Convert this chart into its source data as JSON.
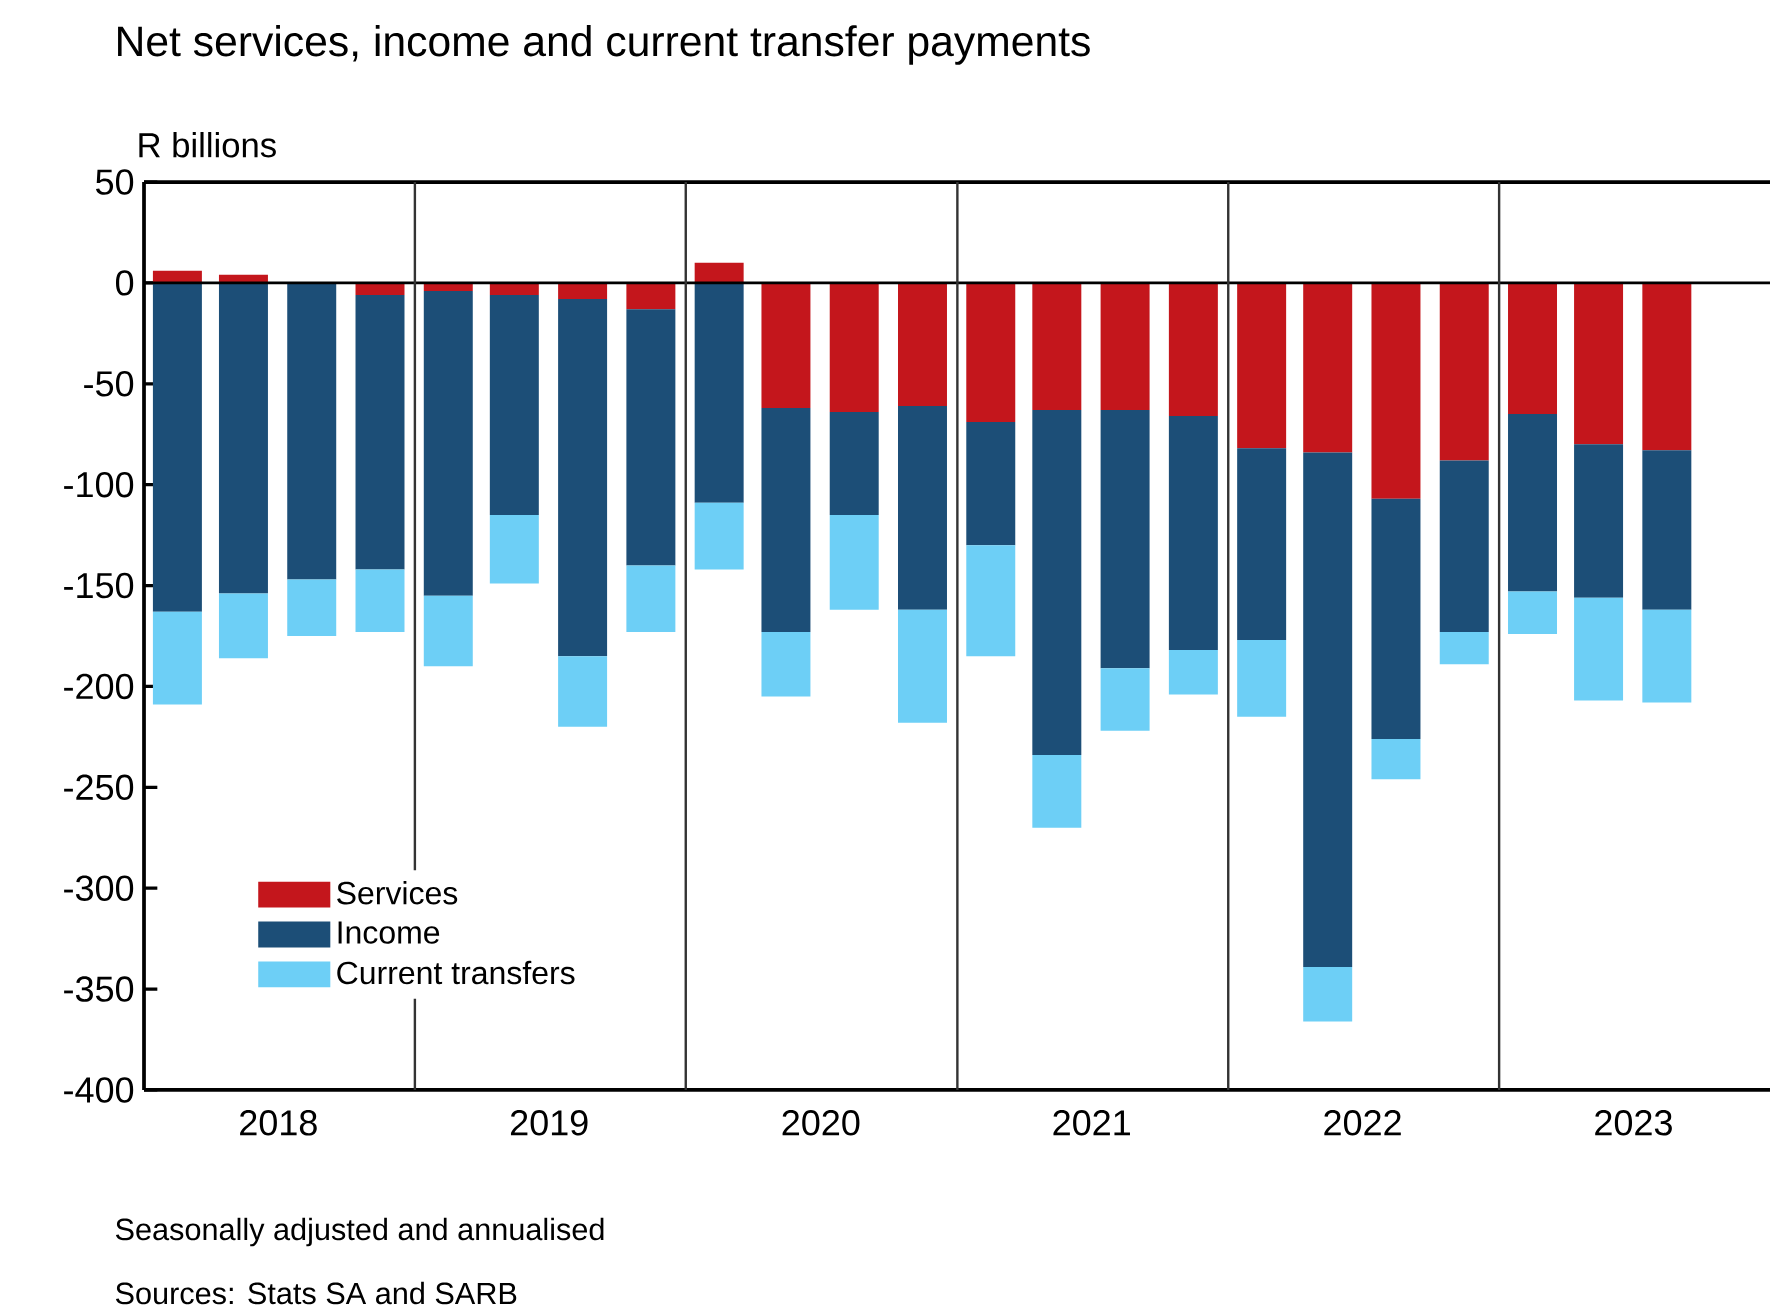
{
  "chart_data": {
    "type": "bar",
    "title": "Net services, income and current transfer payments",
    "ylabel": "R billions",
    "x": [
      "2018-02-15",
      "2018-05-15",
      "2018-08-15",
      "2018-11-15",
      "2019-02-15",
      "2019-05-15",
      "2019-08-15",
      "2019-11-15",
      "2020-02-15",
      "2020-05-15",
      "2020-08-15",
      "2020-11-15",
      "2021-02-15",
      "2021-05-15",
      "2021-08-15",
      "2021-11-15",
      "2022-02-15",
      "2022-05-15",
      "2022-08-15",
      "2022-11-15",
      "2023-02-15",
      "2023-05-15",
      "2023-08-15"
    ],
    "series": [
      {
        "name": "Services",
        "color": "#c4161c",
        "values": [
          6,
          4,
          0,
          -6,
          -4,
          -6,
          -8,
          -13,
          10,
          -62,
          -64,
          -61,
          -69,
          -63,
          -63,
          -66,
          -82,
          -84,
          -107,
          -88,
          -65,
          -80,
          -83
        ]
      },
      {
        "name": "Income",
        "color": "#1c4e77",
        "values": [
          -163,
          -154,
          -147,
          -136,
          -151,
          -109,
          -177,
          -127,
          -109,
          -111,
          -51,
          -101,
          -61,
          -171,
          -128,
          -116,
          -95,
          -255,
          -119,
          -85,
          -88,
          -76,
          -79
        ]
      },
      {
        "name": "Current transfers",
        "color": "#6dcff6",
        "values": [
          -46,
          -32,
          -28,
          -31,
          -35,
          -34,
          -35,
          -33,
          -33,
          -32,
          -47,
          -56,
          -55,
          -36,
          -31,
          -22,
          -38,
          -27,
          -20,
          -16,
          -21,
          -51,
          -46
        ]
      }
    ],
    "stacked": true,
    "xlim": [
      "2018-01-01",
      "2024-01-01"
    ],
    "xticks": [
      {
        "value": "2018-07-01",
        "label": "2018"
      },
      {
        "value": "2019-07-01",
        "label": "2019"
      },
      {
        "value": "2020-07-01",
        "label": "2020"
      },
      {
        "value": "2021-07-01",
        "label": "2021"
      },
      {
        "value": "2022-07-01",
        "label": "2022"
      },
      {
        "value": "2023-07-01",
        "label": "2023"
      }
    ],
    "ylim": [
      -400,
      50
    ],
    "yticks": [
      50,
      0,
      -50,
      -100,
      -150,
      -200,
      -250,
      -300,
      -350,
      -400
    ],
    "ref_lines": [
      {
        "axis": "y",
        "value": 0
      },
      {
        "axis": "x",
        "value": "2019-01-01"
      },
      {
        "axis": "x",
        "value": "2020-01-01"
      },
      {
        "axis": "x",
        "value": "2021-01-01"
      },
      {
        "axis": "x",
        "value": "2022-01-01"
      },
      {
        "axis": "x",
        "value": "2023-01-01"
      }
    ],
    "legend": "bottom left",
    "annotations": [
      "Seasonally adjusted and annualised",
      "Sources: Stats SA and SARB"
    ]
  }
}
